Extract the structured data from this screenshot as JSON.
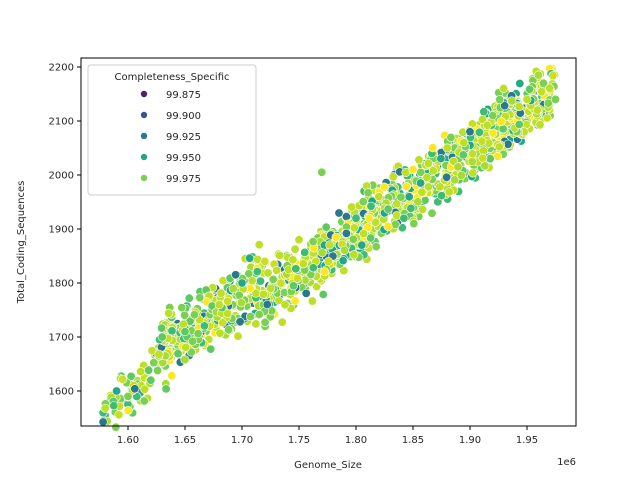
{
  "chart_data": {
    "type": "scatter",
    "title": "",
    "xlabel": "Genome_Size",
    "ylabel": "Total_Coding_Sequences",
    "x_offset_label": "1e6",
    "xlim": [
      1.565,
      1.99
    ],
    "ylim": [
      1533,
      2212
    ],
    "x_ticks": [
      1.6,
      1.65,
      1.7,
      1.75,
      1.8,
      1.85,
      1.9,
      1.95
    ],
    "x_tick_labels": [
      "1.60",
      "1.65",
      "1.70",
      "1.75",
      "1.80",
      "1.85",
      "1.90",
      "1.95"
    ],
    "y_ticks": [
      1600,
      1700,
      1800,
      1900,
      2000,
      2100,
      2200
    ],
    "y_tick_labels": [
      "1600",
      "1700",
      "1800",
      "1900",
      "2000",
      "2100",
      "2200"
    ],
    "grid": false,
    "legend": {
      "title": "Completeness_Specific",
      "position": "upper left",
      "entries": [
        {
          "label": "99.875",
          "color": "#482173"
        },
        {
          "label": "99.900",
          "color": "#3b528b"
        },
        {
          "label": "99.925",
          "color": "#2a788e"
        },
        {
          "label": "99.950",
          "color": "#22a884"
        },
        {
          "label": "99.975",
          "color": "#7ad151"
        }
      ]
    },
    "hue_palette": [
      "#482173",
      "#3b528b",
      "#2a788e",
      "#22a884",
      "#7ad151",
      "#bddf26",
      "#fde725"
    ],
    "trend": {
      "slope_per_1e6": 1500,
      "intercept_at_1_60": 1595,
      "spread": 55
    },
    "n_points": 1400,
    "x_range": [
      1.578,
      1.975
    ],
    "sample_points": [
      {
        "x": 1.58,
        "y": 1568,
        "hue": 99.975
      },
      {
        "x": 1.59,
        "y": 1600,
        "hue": 99.975
      },
      {
        "x": 1.6,
        "y": 1590,
        "hue": 99.99
      },
      {
        "x": 1.62,
        "y": 1620,
        "hue": 99.975
      },
      {
        "x": 1.63,
        "y": 1700,
        "hue": 99.95
      },
      {
        "x": 1.65,
        "y": 1710,
        "hue": 99.975
      },
      {
        "x": 1.68,
        "y": 1760,
        "hue": 99.95
      },
      {
        "x": 1.7,
        "y": 1800,
        "hue": 99.99
      },
      {
        "x": 1.72,
        "y": 1840,
        "hue": 99.975
      },
      {
        "x": 1.75,
        "y": 1880,
        "hue": 99.99
      },
      {
        "x": 1.77,
        "y": 2005,
        "hue": 99.975
      },
      {
        "x": 1.8,
        "y": 1920,
        "hue": 99.99
      },
      {
        "x": 1.82,
        "y": 1960,
        "hue": 99.975
      },
      {
        "x": 1.85,
        "y": 2010,
        "hue": 99.99
      },
      {
        "x": 1.88,
        "y": 2050,
        "hue": 99.975
      },
      {
        "x": 1.9,
        "y": 2080,
        "hue": 99.99
      },
      {
        "x": 1.92,
        "y": 2110,
        "hue": 99.975
      },
      {
        "x": 1.95,
        "y": 2140,
        "hue": 99.99
      },
      {
        "x": 1.96,
        "y": 2185,
        "hue": 99.99
      },
      {
        "x": 1.975,
        "y": 2140,
        "hue": 99.99
      }
    ]
  }
}
